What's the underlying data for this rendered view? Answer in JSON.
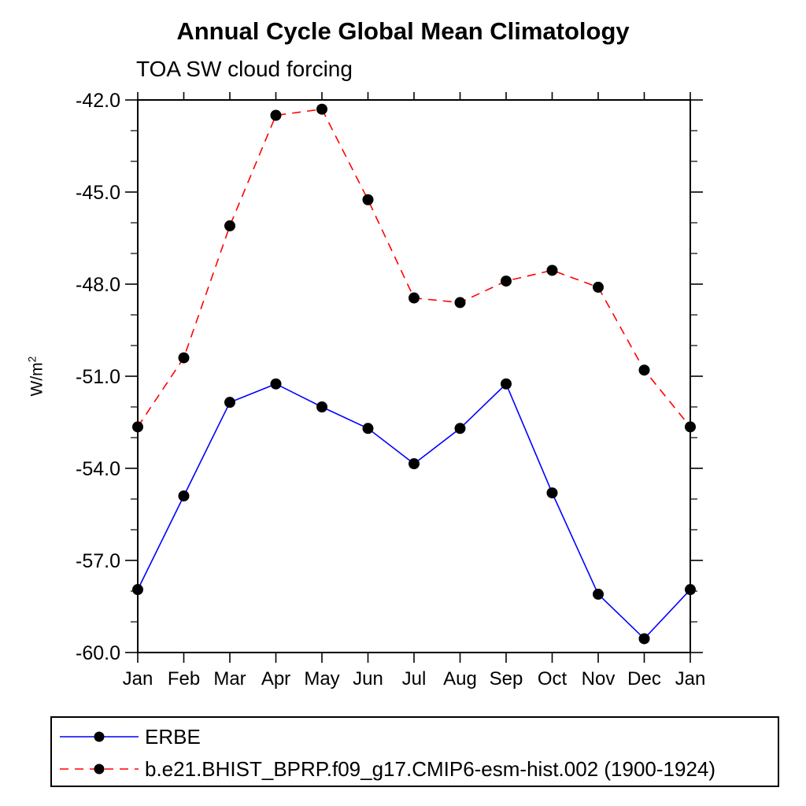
{
  "header": {
    "title": "Annual Cycle Global Mean Climatology",
    "subtitle": "TOA SW cloud forcing"
  },
  "y_axis": {
    "label_base": "W/m",
    "label_sup": "2"
  },
  "chart_data": {
    "type": "line",
    "title": "Annual Cycle Global Mean Climatology",
    "subtitle": "TOA SW cloud forcing",
    "xlabel": "",
    "ylabel": "W/m²",
    "categories": [
      "Jan",
      "Feb",
      "Mar",
      "Apr",
      "May",
      "Jun",
      "Jul",
      "Aug",
      "Sep",
      "Oct",
      "Nov",
      "Dec",
      "Jan"
    ],
    "ylim": [
      -60.0,
      -42.0
    ],
    "yticks": {
      "major_values": [
        -42.0,
        -45.0,
        -48.0,
        -51.0,
        -54.0,
        -57.0,
        -60.0
      ],
      "major_labels": [
        "-42.0",
        "-45.0",
        "-48.0",
        "-51.0",
        "-54.0",
        "-57.0",
        "-60.0"
      ],
      "minor_step": 1.0
    },
    "grid": false,
    "frame_color": "#000000",
    "marker_color": "#000000",
    "legend_position": "bottom-left",
    "series": [
      {
        "name": "ERBE",
        "color": "#0000ff",
        "line_style": "solid",
        "marker": "circle",
        "values": [
          -57.95,
          -54.9,
          -51.85,
          -51.25,
          -52.0,
          -52.7,
          -53.85,
          -52.7,
          -51.25,
          -54.8,
          -58.1,
          -59.55,
          -57.95
        ]
      },
      {
        "name": "b.e21.BHIST_BPRP.f09_g17.CMIP6-esm-hist.002 (1900-1924)",
        "color": "#ff0000",
        "line_style": "dashed",
        "marker": "circle",
        "values": [
          -52.65,
          -50.4,
          -46.1,
          -42.5,
          -42.3,
          -45.25,
          -48.45,
          -48.6,
          -47.9,
          -47.55,
          -48.1,
          -50.8,
          -52.65
        ]
      }
    ]
  }
}
